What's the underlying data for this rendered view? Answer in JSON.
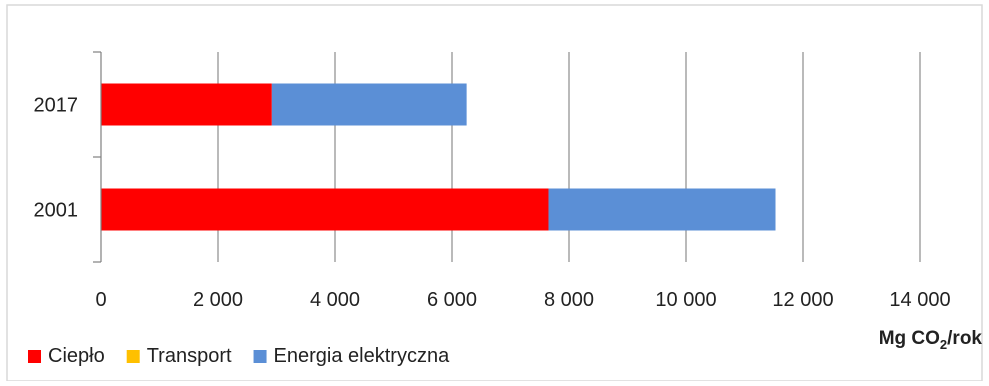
{
  "chart_data": {
    "type": "bar",
    "orientation": "horizontal",
    "stacked": true,
    "categories": [
      "2017",
      "2001"
    ],
    "series": [
      {
        "name": "Ciepło",
        "color": "#ff0000",
        "values": [
          2920,
          7650
        ]
      },
      {
        "name": "Transport",
        "color": "#ffc000",
        "values": [
          0,
          0
        ]
      },
      {
        "name": "Energia elektryczna",
        "color": "#5b8fd6",
        "values": [
          3330,
          3880
        ]
      }
    ],
    "xlim": [
      0,
      14000
    ],
    "xticks": [
      0,
      2000,
      4000,
      6000,
      8000,
      10000,
      12000,
      14000
    ],
    "xtick_labels": [
      "0",
      "2 000",
      "4 000",
      "6 000",
      "8 000",
      "10 000",
      "12 000",
      "14 000"
    ],
    "xlabel": {
      "main": "Mg CO",
      "sub": "2",
      "tail": "/rok"
    },
    "grid": "vertical",
    "legend": "bottom"
  }
}
